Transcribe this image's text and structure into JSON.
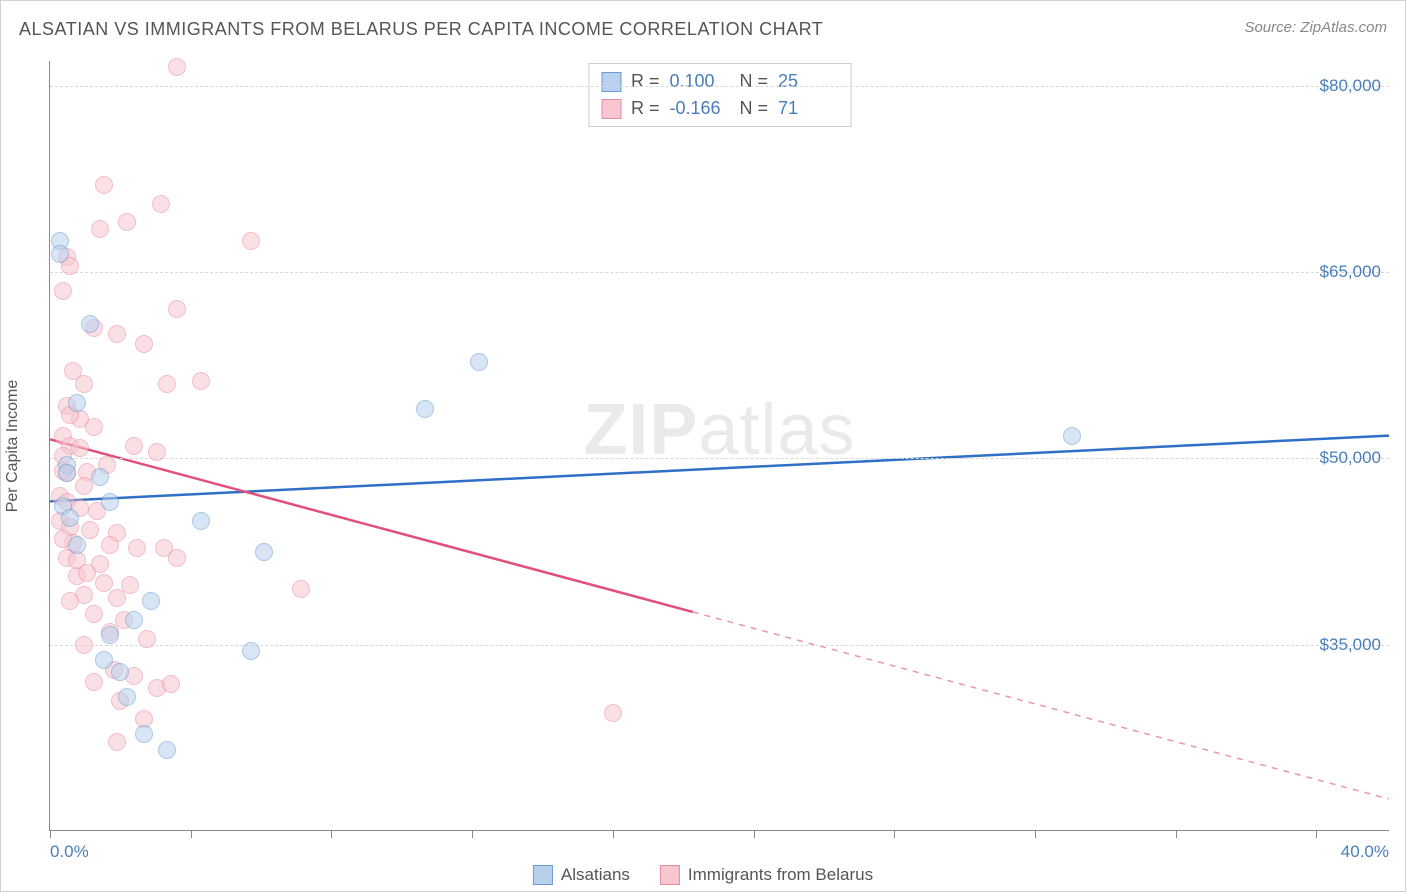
{
  "chart": {
    "title": "ALSATIAN VS IMMIGRANTS FROM BELARUS PER CAPITA INCOME CORRELATION CHART",
    "source": "Source: ZipAtlas.com",
    "watermark_bold": "ZIP",
    "watermark_rest": "atlas",
    "y_axis_title": "Per Capita Income",
    "type": "scatter_with_regression",
    "background_color": "#ffffff",
    "grid_color": "#d8d8d8",
    "axis_color": "#888888",
    "x_axis": {
      "min": 0.0,
      "max": 40.0,
      "label_min": "0.0%",
      "label_max": "40.0%",
      "tick_positions_pct": [
        0,
        10.5,
        21,
        31.5,
        42,
        52.5,
        63,
        73.5,
        84,
        94.5
      ]
    },
    "y_axis": {
      "min": 20000,
      "max": 82000,
      "ticks": [
        {
          "value": 80000,
          "label": "$80,000"
        },
        {
          "value": 65000,
          "label": "$65,000"
        },
        {
          "value": 50000,
          "label": "$50,000"
        },
        {
          "value": 35000,
          "label": "$35,000"
        }
      ]
    },
    "series": [
      {
        "name": "Alsatians",
        "fill_color": "#b8d0ec",
        "stroke_color": "#6c9bd1",
        "line_color": "#2f6fc5",
        "r_label": "R =",
        "r_value": "0.100",
        "n_label": "N =",
        "n_value": "25",
        "trend": {
          "x1_pct": 0,
          "y1": 46500,
          "x2_pct": 100,
          "y2": 51800,
          "dash_start_pct": 100
        },
        "points": [
          {
            "x": 0.3,
            "y": 67500
          },
          {
            "x": 0.3,
            "y": 66500
          },
          {
            "x": 1.2,
            "y": 60800
          },
          {
            "x": 0.8,
            "y": 54500
          },
          {
            "x": 0.5,
            "y": 49500
          },
          {
            "x": 0.5,
            "y": 48800
          },
          {
            "x": 0.4,
            "y": 46200
          },
          {
            "x": 0.6,
            "y": 45200
          },
          {
            "x": 12.8,
            "y": 57800
          },
          {
            "x": 11.2,
            "y": 54000
          },
          {
            "x": 1.8,
            "y": 46500
          },
          {
            "x": 4.5,
            "y": 45000
          },
          {
            "x": 6.4,
            "y": 42500
          },
          {
            "x": 3.0,
            "y": 38500
          },
          {
            "x": 2.5,
            "y": 37000
          },
          {
            "x": 1.8,
            "y": 35800
          },
          {
            "x": 1.6,
            "y": 33800
          },
          {
            "x": 2.1,
            "y": 32800
          },
          {
            "x": 6.0,
            "y": 34500
          },
          {
            "x": 2.3,
            "y": 30800
          },
          {
            "x": 2.8,
            "y": 27800
          },
          {
            "x": 3.5,
            "y": 26500
          },
          {
            "x": 30.5,
            "y": 51800
          },
          {
            "x": 0.8,
            "y": 43000
          },
          {
            "x": 1.5,
            "y": 48500
          }
        ]
      },
      {
        "name": "Immigrants from Belarus",
        "fill_color": "#f7c6d0",
        "stroke_color": "#e88ba4",
        "line_color": "#e24f7a",
        "r_label": "R =",
        "r_value": "-0.166",
        "n_label": "N =",
        "n_value": "71",
        "trend": {
          "x1_pct": 0,
          "y1": 51500,
          "x2_pct": 100,
          "y2": 22500,
          "dash_start_pct": 48
        },
        "points": [
          {
            "x": 3.8,
            "y": 81500
          },
          {
            "x": 1.6,
            "y": 72000
          },
          {
            "x": 2.3,
            "y": 69000
          },
          {
            "x": 3.3,
            "y": 70500
          },
          {
            "x": 1.5,
            "y": 68500
          },
          {
            "x": 0.5,
            "y": 66200
          },
          {
            "x": 0.6,
            "y": 65500
          },
          {
            "x": 0.4,
            "y": 63500
          },
          {
            "x": 6.0,
            "y": 67500
          },
          {
            "x": 3.8,
            "y": 62000
          },
          {
            "x": 1.3,
            "y": 60500
          },
          {
            "x": 2.0,
            "y": 60000
          },
          {
            "x": 2.8,
            "y": 59200
          },
          {
            "x": 0.7,
            "y": 57000
          },
          {
            "x": 1.0,
            "y": 56000
          },
          {
            "x": 3.5,
            "y": 56000
          },
          {
            "x": 4.5,
            "y": 56200
          },
          {
            "x": 0.5,
            "y": 54200
          },
          {
            "x": 0.9,
            "y": 53200
          },
          {
            "x": 1.3,
            "y": 52500
          },
          {
            "x": 0.4,
            "y": 51800
          },
          {
            "x": 0.6,
            "y": 51000
          },
          {
            "x": 2.5,
            "y": 51000
          },
          {
            "x": 0.4,
            "y": 50200
          },
          {
            "x": 1.7,
            "y": 49500
          },
          {
            "x": 3.2,
            "y": 50500
          },
          {
            "x": 0.5,
            "y": 48800
          },
          {
            "x": 1.1,
            "y": 48900
          },
          {
            "x": 1.0,
            "y": 47800
          },
          {
            "x": 0.3,
            "y": 47000
          },
          {
            "x": 0.5,
            "y": 46500
          },
          {
            "x": 0.9,
            "y": 46000
          },
          {
            "x": 1.4,
            "y": 45800
          },
          {
            "x": 0.3,
            "y": 45000
          },
          {
            "x": 0.6,
            "y": 44500
          },
          {
            "x": 2.0,
            "y": 44000
          },
          {
            "x": 0.7,
            "y": 43200
          },
          {
            "x": 1.8,
            "y": 43000
          },
          {
            "x": 2.6,
            "y": 42800
          },
          {
            "x": 3.4,
            "y": 42800
          },
          {
            "x": 0.5,
            "y": 42000
          },
          {
            "x": 1.5,
            "y": 41500
          },
          {
            "x": 3.8,
            "y": 42000
          },
          {
            "x": 0.8,
            "y": 40500
          },
          {
            "x": 1.6,
            "y": 40000
          },
          {
            "x": 2.4,
            "y": 39800
          },
          {
            "x": 1.0,
            "y": 39000
          },
          {
            "x": 2.0,
            "y": 38800
          },
          {
            "x": 7.5,
            "y": 39500
          },
          {
            "x": 1.3,
            "y": 37500
          },
          {
            "x": 2.2,
            "y": 37000
          },
          {
            "x": 1.8,
            "y": 36000
          },
          {
            "x": 1.0,
            "y": 35000
          },
          {
            "x": 2.9,
            "y": 35500
          },
          {
            "x": 1.9,
            "y": 33000
          },
          {
            "x": 2.5,
            "y": 32500
          },
          {
            "x": 1.3,
            "y": 32000
          },
          {
            "x": 3.2,
            "y": 31500
          },
          {
            "x": 2.1,
            "y": 30500
          },
          {
            "x": 3.6,
            "y": 31800
          },
          {
            "x": 2.8,
            "y": 29000
          },
          {
            "x": 2.0,
            "y": 27200
          },
          {
            "x": 16.8,
            "y": 29500
          },
          {
            "x": 0.4,
            "y": 49000
          },
          {
            "x": 0.6,
            "y": 53500
          },
          {
            "x": 0.9,
            "y": 50800
          },
          {
            "x": 1.2,
            "y": 44200
          },
          {
            "x": 0.4,
            "y": 43500
          },
          {
            "x": 0.8,
            "y": 41800
          },
          {
            "x": 1.1,
            "y": 40800
          },
          {
            "x": 0.6,
            "y": 38500
          }
        ]
      }
    ]
  }
}
